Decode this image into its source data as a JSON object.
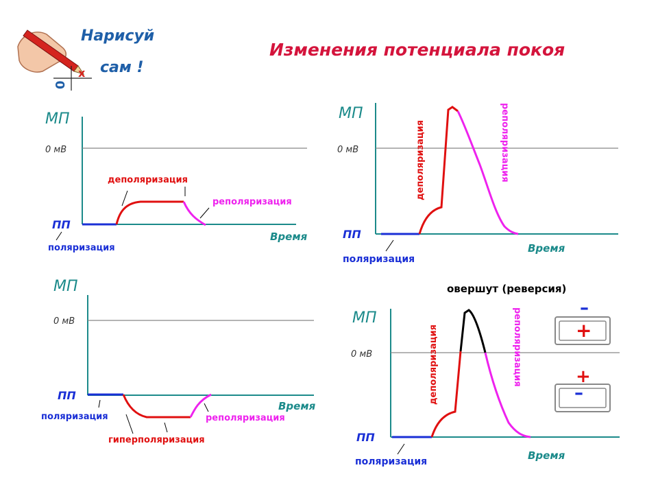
{
  "logo": {
    "line1": "Нарисуй",
    "line2": "сам !"
  },
  "title": "Изменения потенциала покоя",
  "colors": {
    "axis": "#1b8a8a",
    "zero_line": "#888888",
    "polarization": "#1a2fd6",
    "depolarization": "#e01010",
    "repolarization": "#ee22ee",
    "overshoot": "#000000",
    "title": "#d4143c",
    "labels_red": "#e01010",
    "labels_magenta": "#ee22ee"
  },
  "panels": {
    "p1": {
      "y_axis": "МП",
      "zero": "0 мВ",
      "rest": "ПП",
      "x_axis": "Время",
      "depol": "деполяризация",
      "repol": "реполяризация",
      "pol": "поляризация"
    },
    "p2": {
      "y_axis": "МП",
      "zero": "0 мВ",
      "rest": "ПП",
      "x_axis": "Время",
      "depol": "деполяризация",
      "repol": "реполяризация",
      "pol": "поляризация"
    },
    "p3": {
      "y_axis": "МП",
      "zero": "0 мВ",
      "rest": "ПП",
      "x_axis": "Время",
      "pol": "поляризация",
      "hyper": "гиперполяризация",
      "repol": "реполяризация"
    },
    "p4": {
      "y_axis": "МП",
      "zero": "0 мВ",
      "rest": "ПП",
      "x_axis": "Время",
      "overshoot": "овершут (реверсия)",
      "depol": "деполяризация",
      "repol": "реполяризация",
      "pol": "поляризация",
      "membrane_top": {
        "outer": "–",
        "inner": "+"
      },
      "membrane_bottom": {
        "outer": "+",
        "inner": "–"
      }
    }
  }
}
